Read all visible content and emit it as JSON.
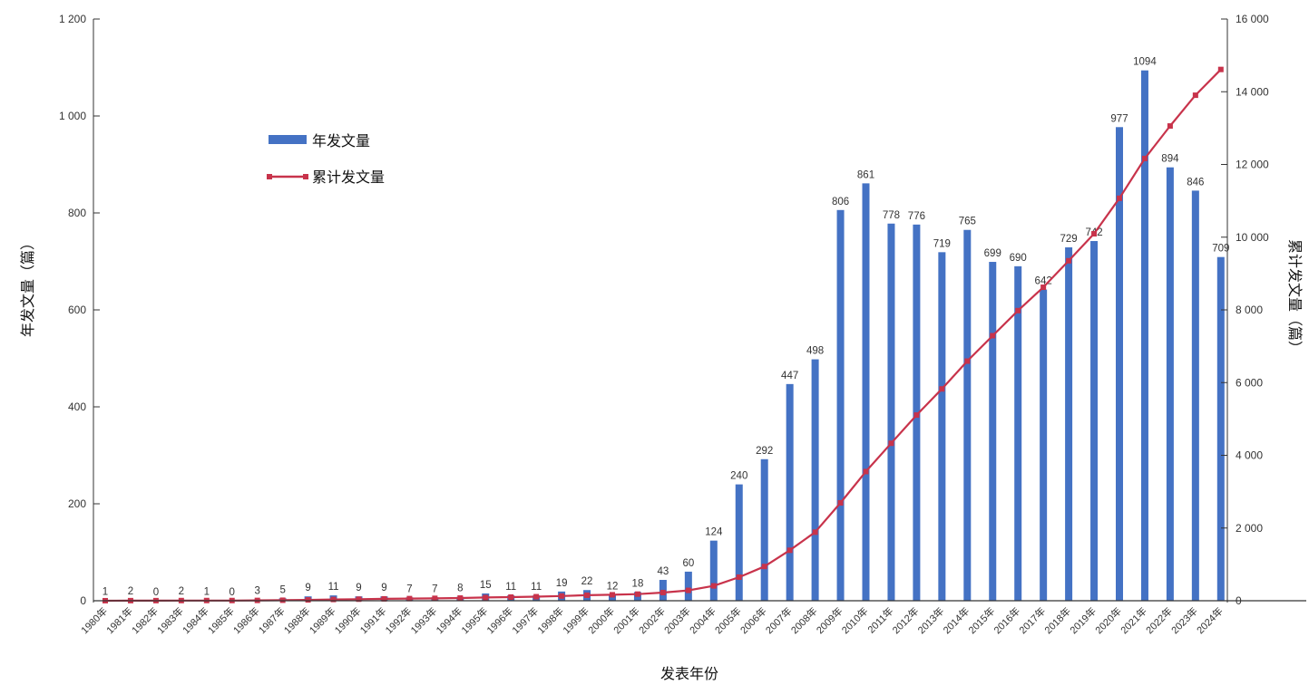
{
  "chart_data": {
    "type": "bar+line",
    "categories": [
      "1980年",
      "1981年",
      "1982年",
      "1983年",
      "1984年",
      "1985年",
      "1986年",
      "1987年",
      "1988年",
      "1989年",
      "1990年",
      "1991年",
      "1992年",
      "1993年",
      "1994年",
      "1995年",
      "1996年",
      "1997年",
      "1998年",
      "1999年",
      "2000年",
      "2001年",
      "2002年",
      "2003年",
      "2004年",
      "2005年",
      "2006年",
      "2007年",
      "2008年",
      "2009年",
      "2010年",
      "2011年",
      "2012年",
      "2013年",
      "2014年",
      "2015年",
      "2016年",
      "2017年",
      "2018年",
      "2019年",
      "2020年",
      "2021年",
      "2022年",
      "2023年",
      "2024年"
    ],
    "series": [
      {
        "name": "年发文量",
        "type": "bar",
        "axis": "left",
        "color": "#4472C4",
        "values": [
          1,
          2,
          0,
          2,
          1,
          0,
          3,
          5,
          9,
          11,
          9,
          9,
          7,
          7,
          8,
          15,
          11,
          11,
          19,
          22,
          12,
          18,
          43,
          60,
          124,
          240,
          292,
          447,
          498,
          806,
          861,
          778,
          776,
          719,
          765,
          699,
          690,
          642,
          729,
          742,
          977,
          1094,
          894,
          846,
          709
        ]
      },
      {
        "name": "累计发文量",
        "type": "line",
        "axis": "right",
        "color": "#C8334B",
        "values": [
          1,
          3,
          3,
          5,
          6,
          6,
          9,
          14,
          23,
          34,
          43,
          52,
          59,
          66,
          74,
          89,
          100,
          111,
          130,
          152,
          164,
          182,
          225,
          285,
          409,
          649,
          941,
          1388,
          1886,
          2692,
          3553,
          4331,
          5107,
          5826,
          6591,
          7290,
          7980,
          8622,
          9351,
          10093,
          11070,
          12164,
          13058,
          13904,
          14613
        ]
      }
    ],
    "xlabel": "发表年份",
    "ylabel": "年发文量（篇）",
    "ylabel_right": "累计发文量（篇）",
    "ylim": [
      0,
      1200
    ],
    "ylim_right": [
      0,
      16000
    ],
    "yticks": [
      "0",
      "200",
      "400",
      "600",
      "800",
      "1 000",
      "1 200"
    ],
    "yticks_right": [
      "0",
      "2 000",
      "4 000",
      "6 000",
      "8 000",
      "10 000",
      "12 000",
      "14 000",
      "16 000"
    ],
    "grid": false,
    "legend_position": "upper-left"
  }
}
